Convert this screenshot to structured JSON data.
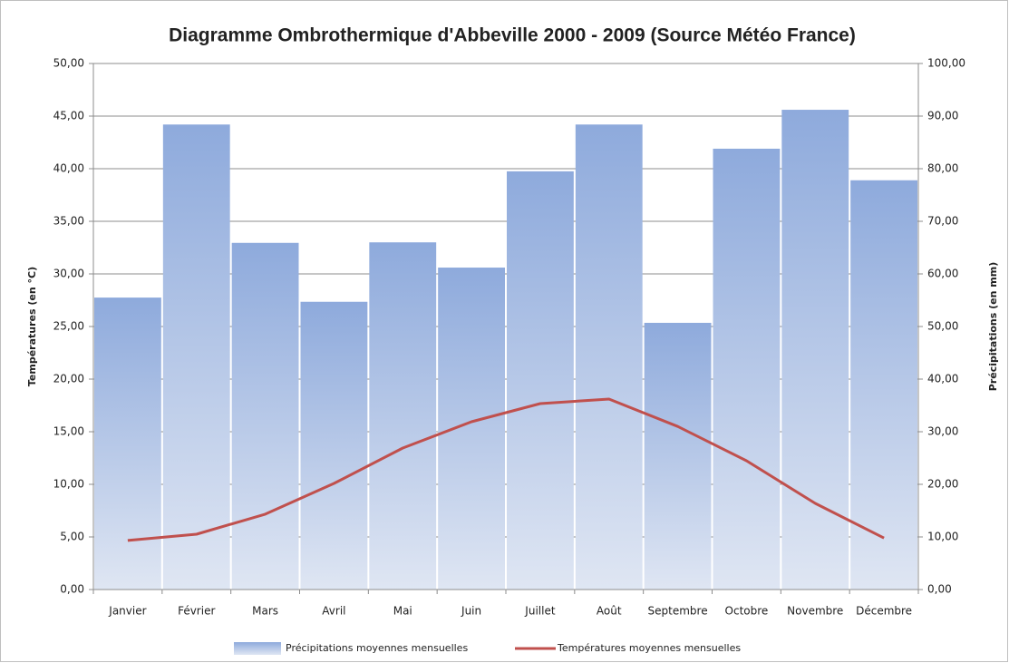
{
  "chart_data": {
    "type": "bar",
    "title": "Diagramme Ombrothermique d'Abbeville 2000 - 2009 (Source Météo France)",
    "y_label": "Températures (en °C)",
    "y2_label": "Précipitations (en mm)",
    "categories": [
      "Janvier",
      "Février",
      "Mars",
      "Avril",
      "Mai",
      "Juin",
      "Juillet",
      "Août",
      "Septembre",
      "Octobre",
      "Novembre",
      "Décembre"
    ],
    "series": [
      {
        "name": "Précipitations moyennes mensuelles",
        "type": "bar",
        "axis": "y2",
        "color": "#8eaadc",
        "values": [
          55.5,
          88.4,
          65.9,
          54.7,
          66.0,
          61.2,
          79.5,
          88.4,
          50.7,
          83.8,
          91.2,
          77.8
        ]
      },
      {
        "name": "Températures moyennes mensuelles",
        "type": "line",
        "axis": "y",
        "color": "#c0504d",
        "values": [
          4.66,
          5.26,
          7.16,
          10.09,
          13.45,
          15.95,
          17.67,
          18.1,
          15.5,
          12.24,
          8.19,
          4.9
        ]
      }
    ],
    "ylim": [
      0,
      50
    ],
    "yticks": [
      {
        "value": 0,
        "label": "0,00"
      },
      {
        "value": 5,
        "label": "5,00"
      },
      {
        "value": 10,
        "label": "10,00"
      },
      {
        "value": 15,
        "label": "15,00"
      },
      {
        "value": 20,
        "label": "20,00"
      },
      {
        "value": 25,
        "label": "25,00"
      },
      {
        "value": 30,
        "label": "30,00"
      },
      {
        "value": 35,
        "label": "35,00"
      },
      {
        "value": 40,
        "label": "40,00"
      },
      {
        "value": 45,
        "label": "45,00"
      },
      {
        "value": 50,
        "label": "50,00"
      }
    ],
    "y2lim": [
      0,
      100
    ],
    "y2ticks": [
      {
        "value": 0,
        "label": "0,00"
      },
      {
        "value": 10,
        "label": "10,00"
      },
      {
        "value": 20,
        "label": "20,00"
      },
      {
        "value": 30,
        "label": "30,00"
      },
      {
        "value": 40,
        "label": "40,00"
      },
      {
        "value": 50,
        "label": "50,00"
      },
      {
        "value": 60,
        "label": "60,00"
      },
      {
        "value": 70,
        "label": "70,00"
      },
      {
        "value": 80,
        "label": "80,00"
      },
      {
        "value": 90,
        "label": "90,00"
      },
      {
        "value": 100,
        "label": "100,00"
      }
    ],
    "grid": true,
    "legend": "bottom"
  }
}
